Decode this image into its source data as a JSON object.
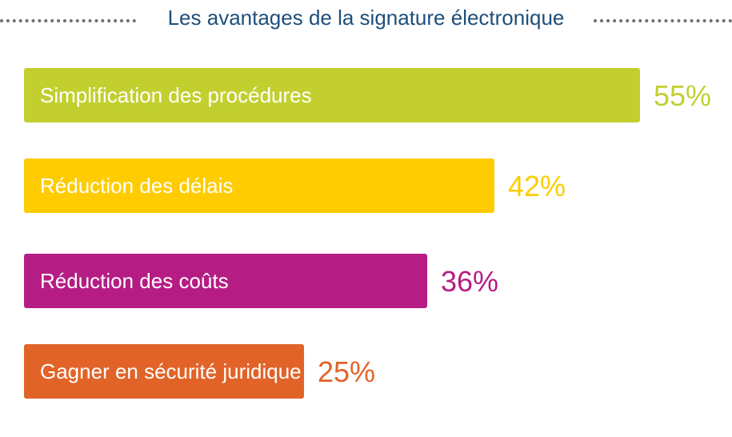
{
  "chart_data": {
    "type": "bar",
    "orientation": "horizontal",
    "title": "Les avantages de la signature électronique",
    "categories": [
      "Simplification des procédures",
      "Réduction des délais",
      "Réduction des coûts",
      "Gagner en sécurité juridique"
    ],
    "values": [
      55,
      42,
      36,
      25
    ],
    "value_labels": [
      "55%",
      "42%",
      "36%",
      "25%"
    ],
    "colors": [
      "#c2cf2f",
      "#fecc00",
      "#b51d84",
      "#e26328"
    ],
    "unit": "%"
  }
}
